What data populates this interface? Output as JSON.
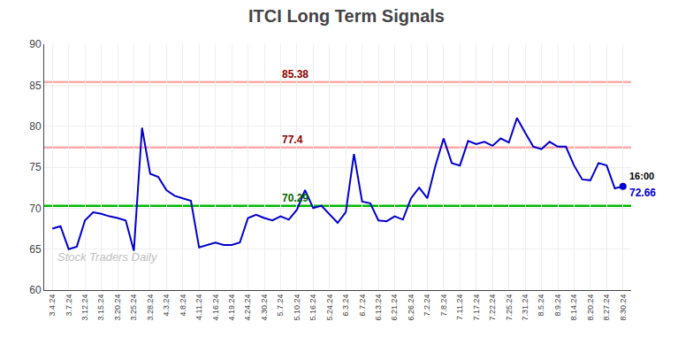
{
  "chart_data": {
    "type": "line",
    "title": "ITCI Long Term Signals",
    "categories": [
      "3.4.24",
      null,
      "3.7.24",
      null,
      "3.12.24",
      null,
      "3.15.24",
      null,
      "3.20.24",
      null,
      "3.25.24",
      null,
      "3.28.24",
      null,
      "4.3.24",
      null,
      "4.8.24",
      null,
      "4.11.24",
      null,
      "4.16.24",
      null,
      "4.19.24",
      null,
      "4.24.24",
      null,
      "4.30.24",
      null,
      "5.7.24",
      null,
      "5.10.24",
      null,
      "5.16.24",
      null,
      "5.24.24",
      null,
      "6.3.24",
      null,
      "6.7.24",
      null,
      "6.13.24",
      null,
      "6.21.24",
      null,
      "6.26.24",
      null,
      "7.2.24",
      null,
      "7.8.24",
      null,
      "7.11.24",
      null,
      "7.17.24",
      null,
      "7.22.24",
      null,
      "7.25.24",
      null,
      "7.31.24",
      null,
      "8.5.24",
      null,
      "8.9.24",
      null,
      "8.14.24",
      null,
      "8.20.24",
      null,
      "8.27.24",
      null,
      "8.30.24"
    ],
    "values": [
      67.5,
      67.8,
      65.0,
      65.3,
      68.5,
      69.5,
      69.3,
      69.0,
      68.8,
      68.5,
      64.8,
      79.8,
      74.2,
      73.8,
      72.2,
      71.5,
      71.2,
      70.9,
      65.2,
      65.5,
      65.8,
      65.5,
      65.5,
      65.8,
      68.8,
      69.2,
      68.8,
      68.5,
      69.0,
      68.6,
      69.8,
      72.2,
      70.0,
      70.3,
      69.2,
      68.2,
      69.5,
      76.6,
      70.8,
      70.6,
      68.5,
      68.4,
      69.0,
      68.6,
      71.2,
      72.5,
      71.2,
      75.2,
      78.5,
      75.5,
      75.2,
      78.2,
      77.8,
      78.1,
      77.6,
      78.5,
      78.0,
      81.0,
      79.2,
      77.5,
      77.2,
      78.1,
      77.5,
      77.5,
      75.2,
      73.5,
      73.4,
      75.5,
      75.2,
      72.4,
      72.66
    ],
    "color": "#0000cc",
    "ylim": [
      60,
      90
    ],
    "yticks": [
      60,
      65,
      70,
      75,
      80,
      85,
      90
    ],
    "grid": true,
    "reference_lines": [
      {
        "value": 85.38,
        "label": "85.38",
        "color": "#ffaaaa",
        "label_color": "#8b0000"
      },
      {
        "value": 77.4,
        "label": "77.4",
        "color": "#ffaaaa",
        "label_color": "#8b0000"
      },
      {
        "value": 70.29,
        "label": "70.29",
        "color": "#00bb00",
        "label_color": "#006600"
      }
    ],
    "annotations": [
      {
        "text": "16:00"
      },
      {
        "text": "72.66",
        "value": 72.66
      }
    ],
    "watermark": "Stock Traders Daily"
  }
}
